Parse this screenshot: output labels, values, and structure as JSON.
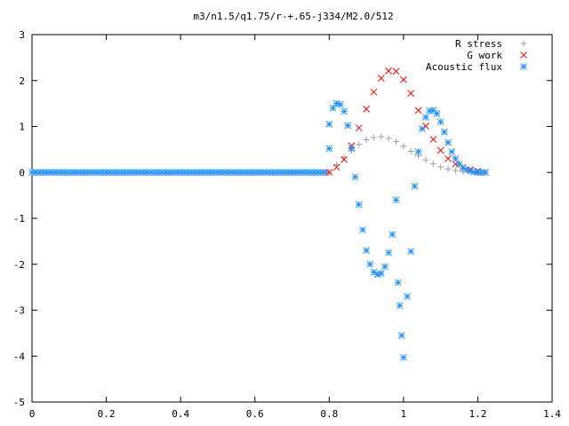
{
  "chart_data": {
    "type": "scatter",
    "title": "m3/n1.5/q1.75/r-+.65-j334/M2.0/512",
    "xlabel": "",
    "ylabel": "",
    "xlim": [
      0,
      1.4
    ],
    "ylim": [
      -5,
      3
    ],
    "x_ticks": [
      "0",
      "0.2",
      "0.4",
      "0.6",
      "0.8",
      "1",
      "1.2",
      "1.4"
    ],
    "y_ticks": [
      "3",
      "2",
      "1",
      "0",
      "-1",
      "-2",
      "-3",
      "-4",
      "-5"
    ],
    "x_tick_values": [
      0,
      0.2,
      0.4,
      0.6,
      0.8,
      1.0,
      1.2,
      1.4
    ],
    "y_tick_values": [
      3,
      2,
      1,
      0,
      -1,
      -2,
      -3,
      -4,
      -5
    ],
    "grid": false,
    "legend_position": "top-right",
    "series": [
      {
        "name": "R stress",
        "marker": "plus",
        "color": "#a0a0a0",
        "x": [
          0.8,
          0.82,
          0.84,
          0.86,
          0.88,
          0.9,
          0.92,
          0.94,
          0.96,
          0.98,
          1.0,
          1.02,
          1.04,
          1.06,
          1.08,
          1.1,
          1.12,
          1.14,
          1.16,
          1.18,
          1.2,
          1.22
        ],
        "y": [
          0.0,
          0.17,
          0.33,
          0.48,
          0.61,
          0.71,
          0.76,
          0.78,
          0.74,
          0.67,
          0.57,
          0.46,
          0.36,
          0.27,
          0.19,
          0.12,
          0.07,
          0.04,
          0.02,
          0.01,
          0.0,
          0.0
        ]
      },
      {
        "name": "G work",
        "marker": "cross",
        "color": "#ff0000",
        "x": [
          0.8,
          0.82,
          0.84,
          0.86,
          0.88,
          0.9,
          0.92,
          0.94,
          0.96,
          0.98,
          1.0,
          1.02,
          1.04,
          1.06,
          1.08,
          1.1,
          1.12,
          1.14,
          1.16,
          1.18,
          1.2,
          1.22
        ],
        "y": [
          0.0,
          0.11,
          0.28,
          0.58,
          0.97,
          1.38,
          1.75,
          2.05,
          2.21,
          2.2,
          2.02,
          1.72,
          1.35,
          1.01,
          0.72,
          0.48,
          0.3,
          0.18,
          0.11,
          0.06,
          0.03,
          0.0
        ]
      },
      {
        "name": "Acoustic flux",
        "marker": "star",
        "color": "#1e90ff",
        "x": [
          0.8,
          0.8,
          0.81,
          0.82,
          0.83,
          0.84,
          0.85,
          0.86,
          0.87,
          0.88,
          0.89,
          0.9,
          0.91,
          0.92,
          0.93,
          0.94,
          0.95,
          0.96,
          0.97,
          0.98,
          0.985,
          0.99,
          0.995,
          1.0,
          1.01,
          1.02,
          1.03,
          1.04,
          1.05,
          1.06,
          1.07,
          1.08,
          1.09,
          1.1,
          1.11,
          1.12,
          1.13,
          1.14,
          1.15,
          1.16,
          1.17,
          1.18,
          1.19,
          1.2,
          1.21,
          1.22
        ],
        "y": [
          0.52,
          1.05,
          1.4,
          1.5,
          1.48,
          1.33,
          1.02,
          0.52,
          -0.1,
          -0.7,
          -1.25,
          -1.7,
          -2.0,
          -2.17,
          -2.22,
          -2.2,
          -2.05,
          -1.75,
          -1.35,
          -0.6,
          -2.4,
          -2.9,
          -3.55,
          -4.03,
          -2.7,
          -1.72,
          -0.3,
          0.45,
          0.95,
          1.2,
          1.34,
          1.35,
          1.28,
          1.1,
          0.88,
          0.65,
          0.45,
          0.3,
          0.18,
          0.1,
          0.06,
          0.03,
          0.01,
          0.0,
          0.0,
          0.0
        ]
      }
    ]
  }
}
